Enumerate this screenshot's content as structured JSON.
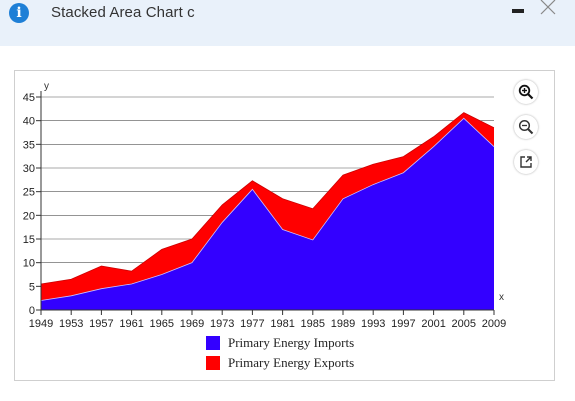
{
  "window": {
    "title": "Stacked Area Chart c",
    "info_icon": "info-icon",
    "minimize_icon": "minimize-icon",
    "close_icon": "close-icon"
  },
  "toolbar": {
    "zoom_in_icon": "zoom-in-icon",
    "zoom_out_icon": "zoom-out-icon",
    "expand_icon": "expand-icon"
  },
  "colors": {
    "imports": "#3300ff",
    "exports": "#ff0000",
    "titlebar": "#e9f1fa",
    "info": "#1e7fd6"
  },
  "chart_data": {
    "type": "area",
    "stacked": true,
    "xlabel": "x",
    "ylabel": "y",
    "ylim": [
      0,
      45
    ],
    "yticks": [
      0,
      5,
      10,
      15,
      20,
      25,
      30,
      35,
      40,
      45
    ],
    "xticks": [
      "1949",
      "1953",
      "1957",
      "1961",
      "1965",
      "1969",
      "1973",
      "1977",
      "1981",
      "1985",
      "1989",
      "1993",
      "1997",
      "2001",
      "2005",
      "2009"
    ],
    "grid": true,
    "legend_position": "bottom",
    "x": [
      1949,
      1953,
      1957,
      1961,
      1965,
      1969,
      1973,
      1977,
      1981,
      1985,
      1989,
      1993,
      1997,
      2001,
      2005,
      2009
    ],
    "series": [
      {
        "name": "Primary Energy Imports",
        "values": [
          2.0,
          3.0,
          4.5,
          5.5,
          7.5,
          10.0,
          18.5,
          25.5,
          17.0,
          14.8,
          23.5,
          26.5,
          29.0,
          34.5,
          40.5,
          34.5
        ]
      },
      {
        "name": "Primary Energy Exports",
        "values": [
          3.5,
          3.5,
          4.8,
          2.7,
          5.3,
          5.0,
          3.7,
          1.8,
          6.5,
          6.6,
          5.0,
          4.3,
          3.4,
          2.1,
          1.2,
          4.0
        ]
      }
    ]
  }
}
